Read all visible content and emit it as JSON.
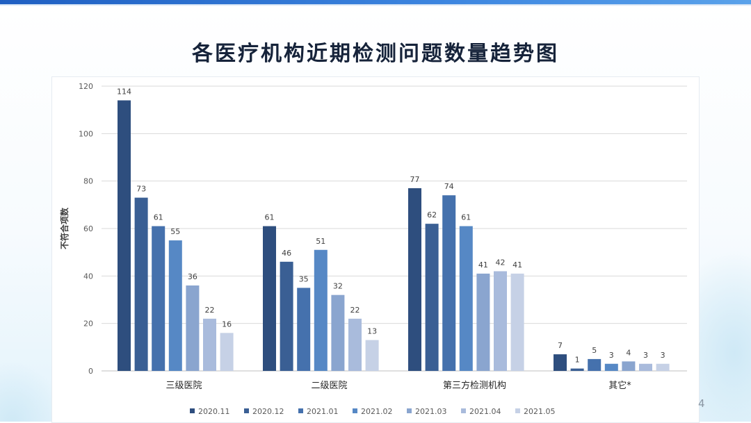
{
  "slide": {
    "title": "各医疗机构近期检测问题数量趋势图",
    "page_number": "4"
  },
  "colors": {
    "series": [
      "#2e4e7e",
      "#3a5f94",
      "#4571ad",
      "#5688c5",
      "#8aa5cf",
      "#a9bbdc",
      "#c6d1e6"
    ],
    "grid": "#d9d9d9",
    "axis_text": "#595959",
    "label_text": "#404040"
  },
  "chart_data": {
    "type": "bar",
    "title": "各医疗机构近期检测问题数量趋势图",
    "xlabel": "",
    "ylabel": "不符合项数",
    "ylim": [
      0,
      120
    ],
    "yticks": [
      0,
      20,
      40,
      60,
      80,
      100,
      120
    ],
    "grid": true,
    "legend_position": "bottom",
    "categories": [
      "三级医院",
      "二级医院",
      "第三方检测机构",
      "其它*"
    ],
    "series": [
      {
        "name": "2020.11",
        "values": [
          114,
          61,
          77,
          7
        ]
      },
      {
        "name": "2020.12",
        "values": [
          73,
          46,
          62,
          1
        ]
      },
      {
        "name": "2021.01",
        "values": [
          61,
          35,
          74,
          5
        ]
      },
      {
        "name": "2021.02",
        "values": [
          55,
          51,
          61,
          3
        ]
      },
      {
        "name": "2021.03",
        "values": [
          36,
          32,
          41,
          4
        ]
      },
      {
        "name": "2021.04",
        "values": [
          22,
          22,
          42,
          3
        ]
      },
      {
        "name": "2021.05",
        "values": [
          16,
          13,
          41,
          3
        ]
      }
    ]
  }
}
